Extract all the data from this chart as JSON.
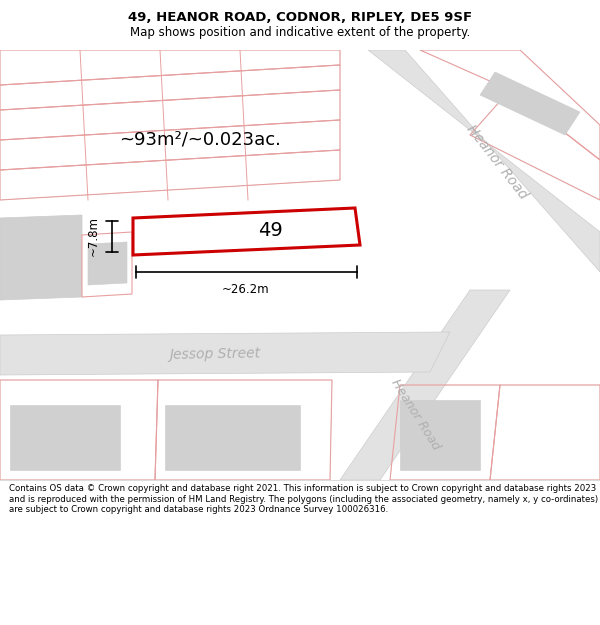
{
  "title": "49, HEANOR ROAD, CODNOR, RIPLEY, DE5 9SF",
  "subtitle": "Map shows position and indicative extent of the property.",
  "footer": "Contains OS data © Crown copyright and database right 2021. This information is subject to Crown copyright and database rights 2023 and is reproduced with the permission of HM Land Registry. The polygons (including the associated geometry, namely x, y co-ordinates) are subject to Crown copyright and database rights 2023 Ordnance Survey 100026316.",
  "map_bg": "#f7f7f7",
  "road_fill": "#e2e2e2",
  "road_line": "#cccccc",
  "pink_line": "#e8a0a0",
  "red_line": "#cc0000",
  "property_label": "49",
  "area_label": "~93m²/~0.023ac.",
  "width_label": "~26.2m",
  "height_label": "~7.8m",
  "street_label1": "Heanor Road",
  "street_label2": "Jessop Street",
  "street_label3": "Heanor Road",
  "title_fontsize": 9.5,
  "subtitle_fontsize": 8.5,
  "footer_fontsize": 6.2
}
